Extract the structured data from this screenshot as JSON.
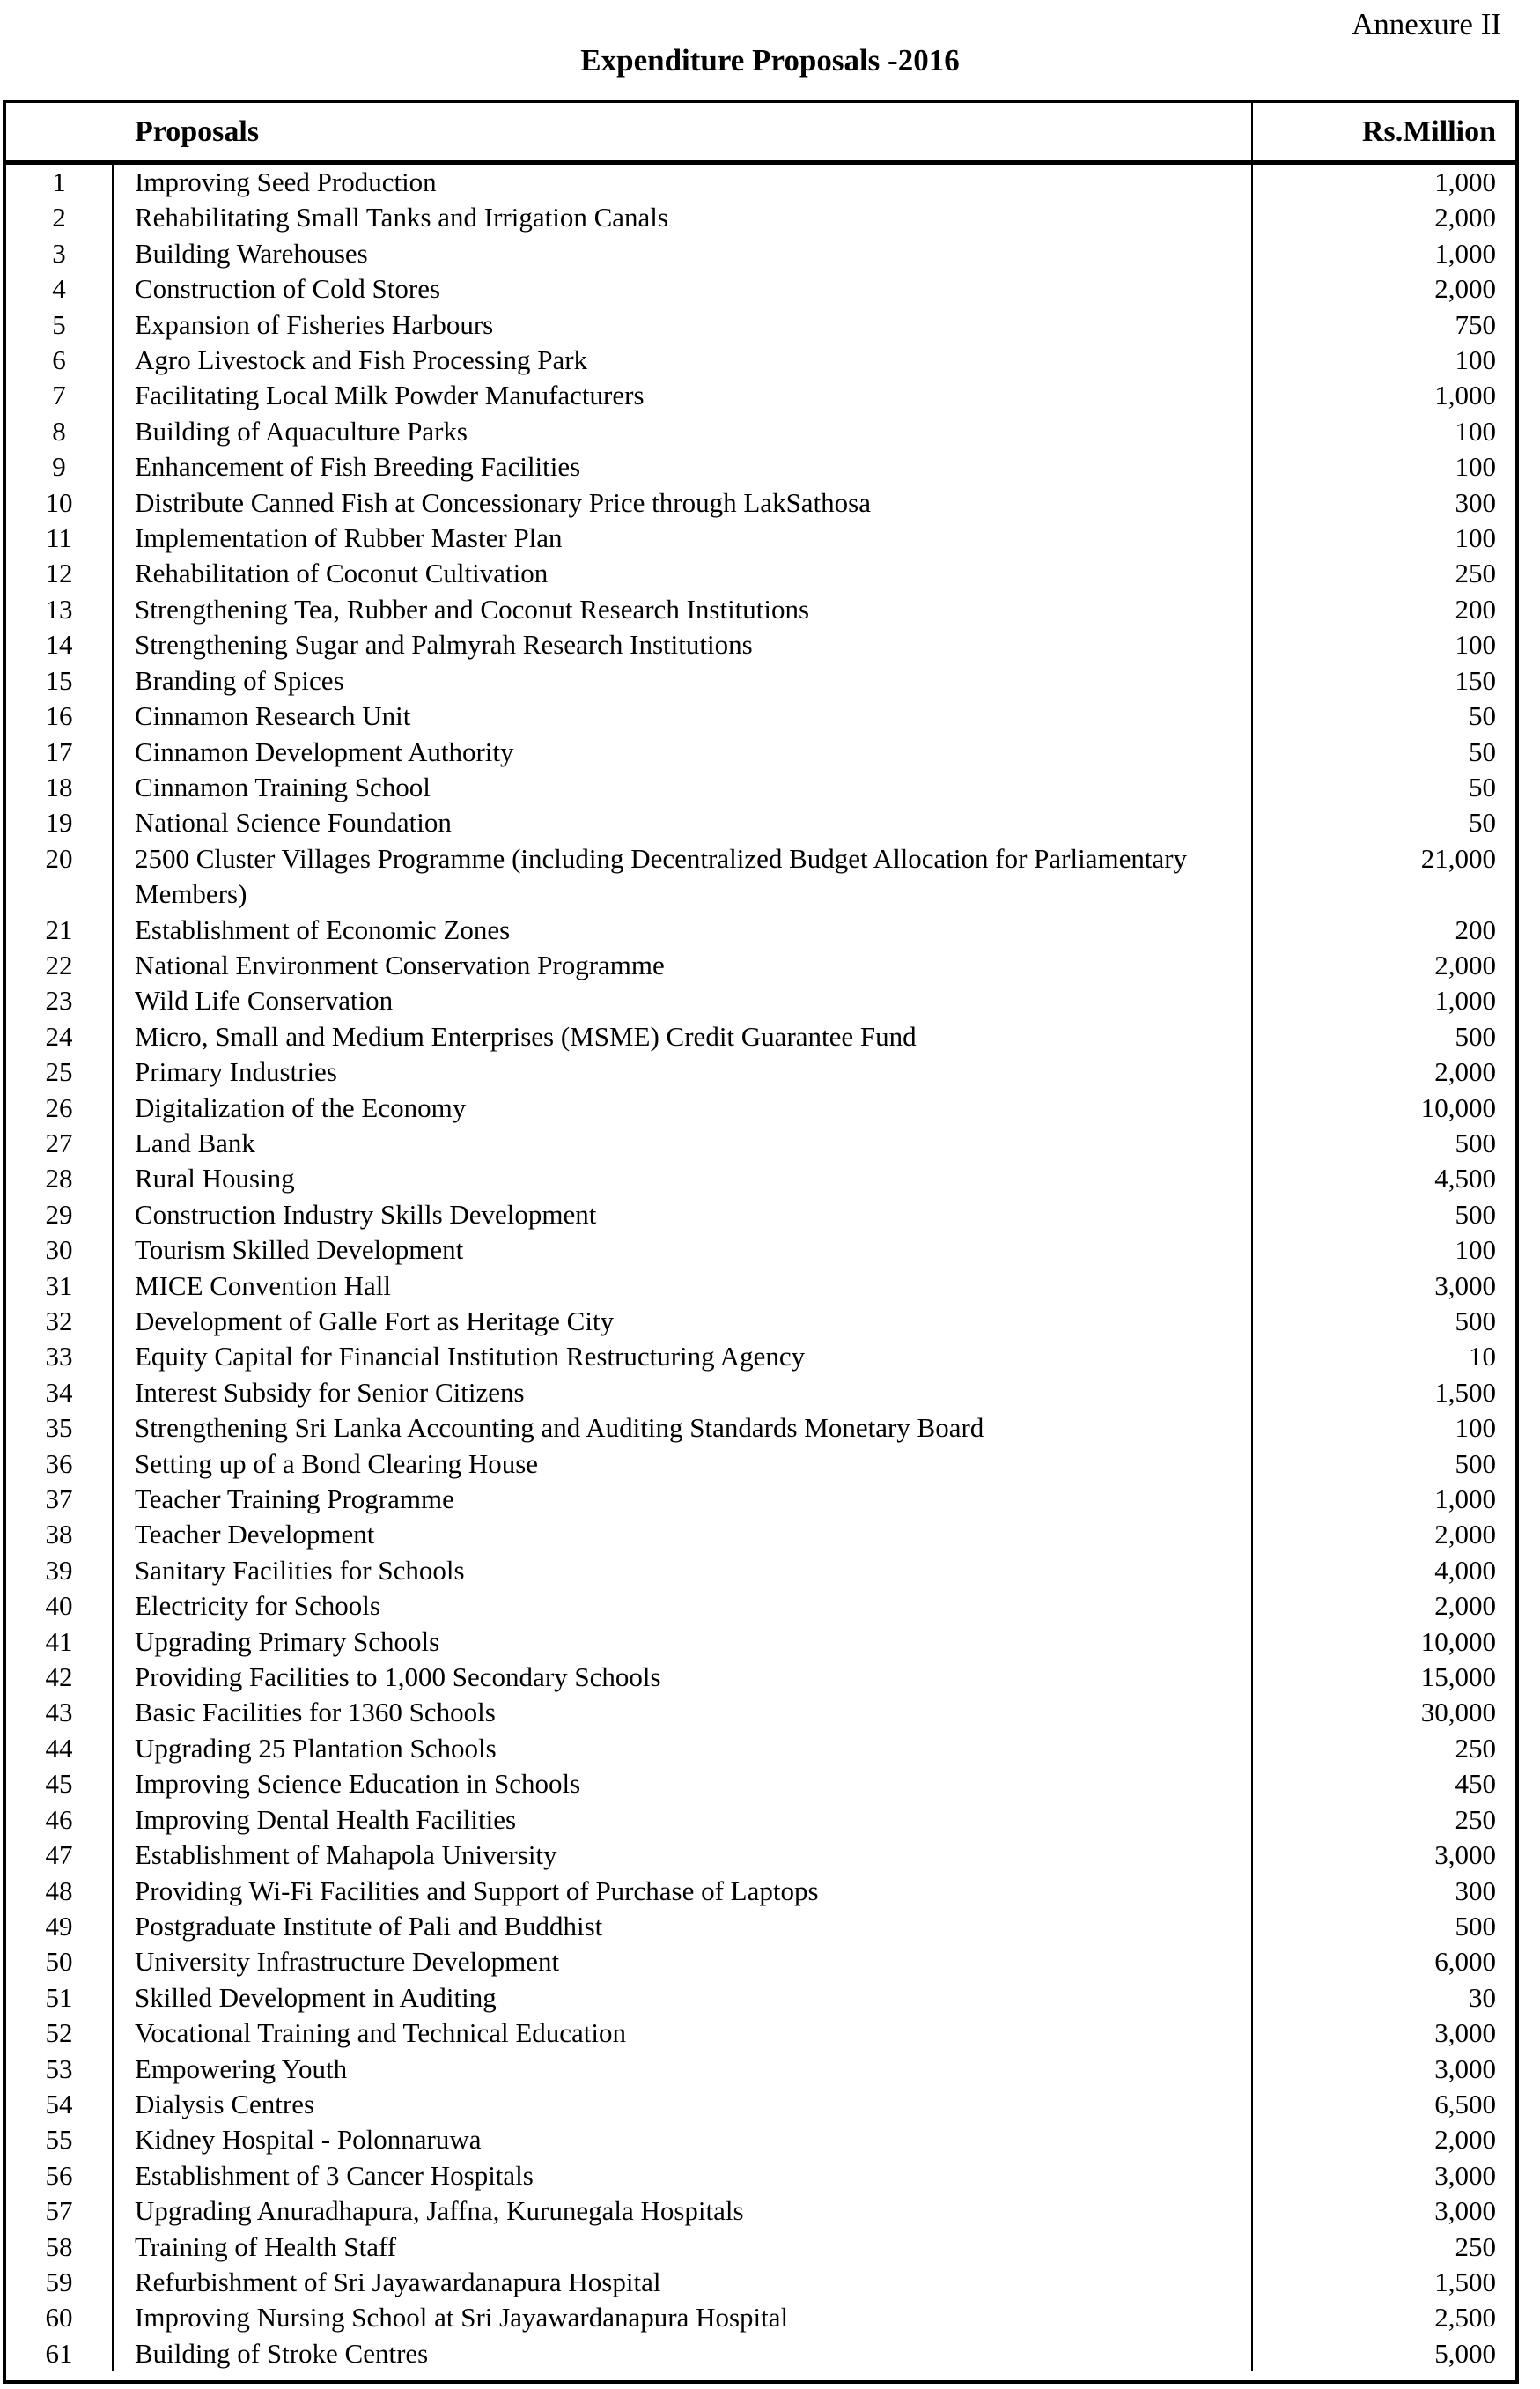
{
  "page": {
    "annexure_label": "Annexure II",
    "title": "Expenditure Proposals -2016"
  },
  "table": {
    "headers": {
      "proposals": "Proposals",
      "amount": "Rs.Million"
    },
    "rows": [
      {
        "no": "1",
        "proposal": "Improving Seed Production",
        "amount": "1,000"
      },
      {
        "no": "2",
        "proposal": "Rehabilitating Small Tanks and Irrigation Canals",
        "amount": "2,000"
      },
      {
        "no": "3",
        "proposal": "Building Warehouses",
        "amount": "1,000"
      },
      {
        "no": "4",
        "proposal": "Construction of Cold Stores",
        "amount": "2,000"
      },
      {
        "no": "5",
        "proposal": "Expansion of Fisheries Harbours",
        "amount": "750"
      },
      {
        "no": "6",
        "proposal": "Agro Livestock and Fish Processing Park",
        "amount": "100"
      },
      {
        "no": "7",
        "proposal": "Facilitating Local Milk Powder Manufacturers",
        "amount": "1,000"
      },
      {
        "no": "8",
        "proposal": "Building of Aquaculture Parks",
        "amount": "100"
      },
      {
        "no": "9",
        "proposal": "Enhancement of Fish Breeding Facilities",
        "amount": "100"
      },
      {
        "no": "10",
        "proposal": "Distribute Canned Fish at Concessionary Price through LakSathosa",
        "amount": "300"
      },
      {
        "no": "11",
        "proposal": "Implementation of Rubber Master Plan",
        "amount": "100"
      },
      {
        "no": "12",
        "proposal": "Rehabilitation of Coconut Cultivation",
        "amount": "250"
      },
      {
        "no": "13",
        "proposal": "Strengthening Tea, Rubber and Coconut Research Institutions",
        "amount": "200"
      },
      {
        "no": "14",
        "proposal": "Strengthening Sugar and Palmyrah Research Institutions",
        "amount": "100"
      },
      {
        "no": "15",
        "proposal": "Branding of Spices",
        "amount": "150"
      },
      {
        "no": "16",
        "proposal": "Cinnamon Research Unit",
        "amount": "50"
      },
      {
        "no": "17",
        "proposal": "Cinnamon Development Authority",
        "amount": "50"
      },
      {
        "no": "18",
        "proposal": "Cinnamon Training School",
        "amount": "50"
      },
      {
        "no": "19",
        "proposal": "National Science Foundation",
        "amount": "50"
      },
      {
        "no": "20",
        "proposal": "2500 Cluster Villages Programme (including Decentralized Budget Allocation for Parliamentary Members)",
        "amount": "21,000"
      },
      {
        "no": "21",
        "proposal": "Establishment of Economic Zones",
        "amount": "200"
      },
      {
        "no": "22",
        "proposal": "National Environment Conservation Programme",
        "amount": "2,000"
      },
      {
        "no": "23",
        "proposal": "Wild Life Conservation",
        "amount": "1,000"
      },
      {
        "no": "24",
        "proposal": "Micro, Small and Medium Enterprises (MSME) Credit Guarantee Fund",
        "amount": "500"
      },
      {
        "no": "25",
        "proposal": "Primary Industries",
        "amount": "2,000"
      },
      {
        "no": "26",
        "proposal": "Digitalization of the Economy",
        "amount": "10,000"
      },
      {
        "no": "27",
        "proposal": "Land Bank",
        "amount": "500"
      },
      {
        "no": "28",
        "proposal": "Rural Housing",
        "amount": "4,500"
      },
      {
        "no": "29",
        "proposal": "Construction Industry Skills Development",
        "amount": "500"
      },
      {
        "no": "30",
        "proposal": "Tourism Skilled Development",
        "amount": "100"
      },
      {
        "no": "31",
        "proposal": "MICE Convention Hall",
        "amount": "3,000"
      },
      {
        "no": "32",
        "proposal": "Development of Galle Fort as Heritage City",
        "amount": "500"
      },
      {
        "no": "33",
        "proposal": "Equity Capital for Financial Institution Restructuring Agency",
        "amount": "10"
      },
      {
        "no": "34",
        "proposal": "Interest Subsidy for Senior Citizens",
        "amount": "1,500"
      },
      {
        "no": "35",
        "proposal": "Strengthening Sri Lanka Accounting and Auditing Standards Monetary Board",
        "amount": "100"
      },
      {
        "no": "36",
        "proposal": "Setting up of a Bond Clearing House",
        "amount": "500"
      },
      {
        "no": "37",
        "proposal": "Teacher Training Programme",
        "amount": "1,000"
      },
      {
        "no": "38",
        "proposal": "Teacher Development",
        "amount": "2,000"
      },
      {
        "no": "39",
        "proposal": "Sanitary Facilities for Schools",
        "amount": "4,000"
      },
      {
        "no": "40",
        "proposal": "Electricity for Schools",
        "amount": "2,000"
      },
      {
        "no": "41",
        "proposal": "Upgrading Primary Schools",
        "amount": "10,000"
      },
      {
        "no": "42",
        "proposal": "Providing Facilities to 1,000 Secondary Schools",
        "amount": "15,000"
      },
      {
        "no": "43",
        "proposal": "Basic Facilities for 1360 Schools",
        "amount": "30,000"
      },
      {
        "no": "44",
        "proposal": "Upgrading 25 Plantation Schools",
        "amount": "250"
      },
      {
        "no": "45",
        "proposal": "Improving Science Education in Schools",
        "amount": "450"
      },
      {
        "no": "46",
        "proposal": "Improving Dental Health Facilities",
        "amount": "250"
      },
      {
        "no": "47",
        "proposal": "Establishment of Mahapola University",
        "amount": "3,000"
      },
      {
        "no": "48",
        "proposal": "Providing Wi-Fi Facilities and Support of Purchase of Laptops",
        "amount": "300"
      },
      {
        "no": "49",
        "proposal": "Postgraduate Institute of Pali and Buddhist",
        "amount": "500"
      },
      {
        "no": "50",
        "proposal": "University Infrastructure Development",
        "amount": "6,000"
      },
      {
        "no": "51",
        "proposal": "Skilled Development in Auditing",
        "amount": "30"
      },
      {
        "no": "52",
        "proposal": "Vocational Training and Technical Education",
        "amount": "3,000"
      },
      {
        "no": "53",
        "proposal": "Empowering Youth",
        "amount": "3,000"
      },
      {
        "no": "54",
        "proposal": "Dialysis Centres",
        "amount": "6,500"
      },
      {
        "no": "55",
        "proposal": "Kidney Hospital - Polonnaruwa",
        "amount": "2,000"
      },
      {
        "no": "56",
        "proposal": "Establishment of 3 Cancer Hospitals",
        "amount": "3,000"
      },
      {
        "no": "57",
        "proposal": "Upgrading Anuradhapura, Jaffna, Kurunegala Hospitals",
        "amount": "3,000"
      },
      {
        "no": "58",
        "proposal": "Training of Health Staff",
        "amount": "250"
      },
      {
        "no": "59",
        "proposal": "Refurbishment of Sri Jayawardanapura Hospital",
        "amount": "1,500"
      },
      {
        "no": "60",
        "proposal": "Improving Nursing School at Sri Jayawardanapura Hospital",
        "amount": "2,500"
      },
      {
        "no": "61",
        "proposal": "Building of Stroke Centres",
        "amount": "5,000"
      }
    ]
  }
}
